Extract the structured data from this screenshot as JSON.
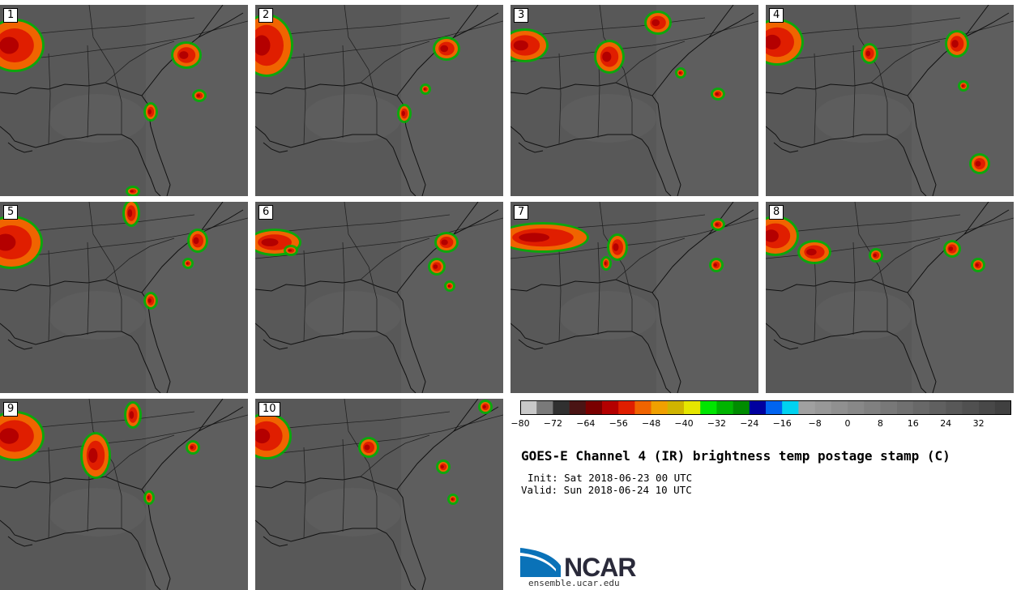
{
  "figure": {
    "title": "GOES-E Channel 4 (IR) brightness temp postage stamp (C)",
    "init_label": "Init: Sat 2018-06-23 00 UTC",
    "valid_label": "Valid: Sun 2018-06-24 10 UTC"
  },
  "panels": [
    {
      "label": "1"
    },
    {
      "label": "2"
    },
    {
      "label": "3"
    },
    {
      "label": "4"
    },
    {
      "label": "5"
    },
    {
      "label": "6"
    },
    {
      "label": "7"
    },
    {
      "label": "8"
    },
    {
      "label": "9"
    },
    {
      "label": "10"
    }
  ],
  "colorbar": {
    "ticks": [
      "−80",
      "−72",
      "−64",
      "−56",
      "−48",
      "−40",
      "−32",
      "−24",
      "−16",
      "−8",
      "0",
      "8",
      "16",
      "24",
      "32"
    ],
    "min": -80,
    "max": 40,
    "step": 4,
    "colors": [
      "#c8c8c8",
      "#7a7a7a",
      "#303030",
      "#4a1414",
      "#7a0000",
      "#b40000",
      "#e01e00",
      "#f06400",
      "#f0a000",
      "#d0b400",
      "#e6e600",
      "#00e600",
      "#00b400",
      "#008c00",
      "#0000a0",
      "#0064f0",
      "#00d2f0",
      "#a0a0a0",
      "#989898",
      "#909090",
      "#888888",
      "#808080",
      "#787878",
      "#707070",
      "#686868",
      "#606060",
      "#585858",
      "#505050",
      "#484848",
      "#404040"
    ]
  },
  "logo": {
    "text": "NCAR",
    "url": "ensemble.ucar.edu",
    "colors": {
      "blue": "#0a72b8",
      "dark": "#2a2a3a"
    }
  }
}
